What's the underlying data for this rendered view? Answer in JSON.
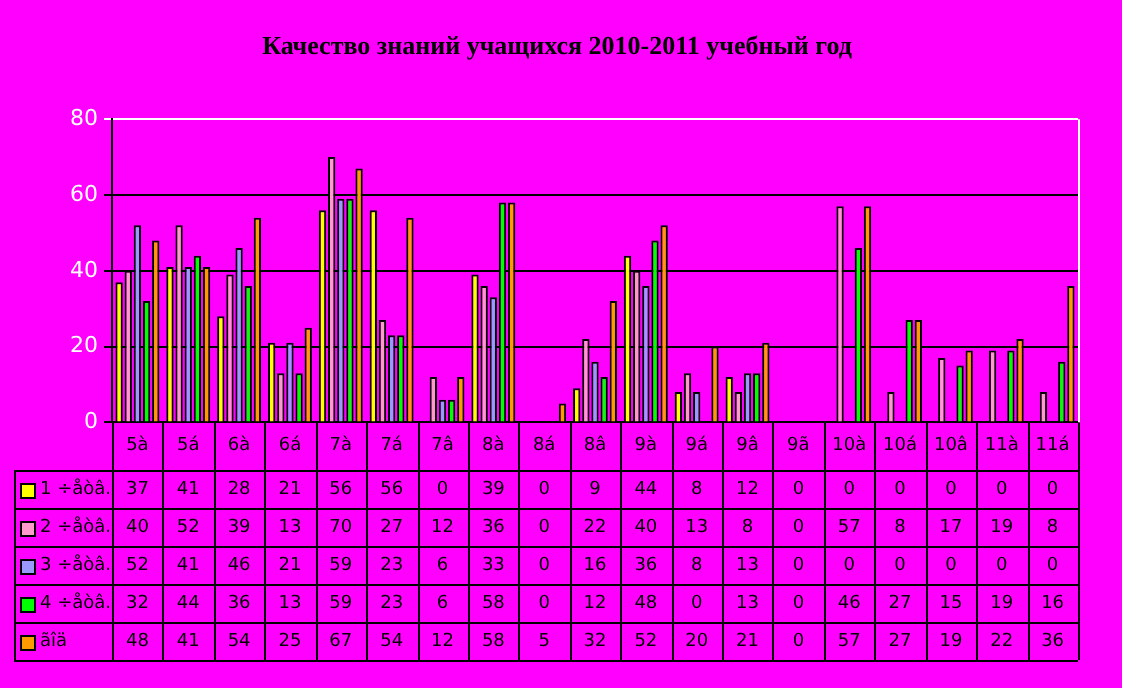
{
  "chart_data": {
    "type": "bar",
    "title": "Качество знаний учащихся 2010-2011 учебный год",
    "categories": [
      "5à",
      "5á",
      "6à",
      "6á",
      "7à",
      "7á",
      "7â",
      "8à",
      "8á",
      "8â",
      "9à",
      "9á",
      "9â",
      "9ã",
      "10à",
      "10á",
      "10â",
      "11à",
      "11á"
    ],
    "series": [
      {
        "name": "1 ÷åòâ.",
        "color": "#ffff00",
        "values": [
          37,
          41,
          28,
          21,
          56,
          56,
          0,
          39,
          0,
          9,
          44,
          8,
          12,
          0,
          0,
          0,
          0,
          0,
          0
        ]
      },
      {
        "name": "2 ÷åòâ.",
        "color": "#ff99cc",
        "values": [
          40,
          52,
          39,
          13,
          70,
          27,
          12,
          36,
          0,
          22,
          40,
          13,
          8,
          0,
          57,
          8,
          17,
          19,
          8
        ]
      },
      {
        "name": "3 ÷åòâ.",
        "color": "#9999ff",
        "values": [
          52,
          41,
          46,
          21,
          59,
          23,
          6,
          33,
          0,
          16,
          36,
          8,
          13,
          0,
          0,
          0,
          0,
          0,
          0
        ]
      },
      {
        "name": "4 ÷åòâ.",
        "color": "#00ff00",
        "values": [
          32,
          44,
          36,
          13,
          59,
          23,
          6,
          58,
          0,
          12,
          48,
          0,
          13,
          0,
          46,
          27,
          15,
          19,
          16
        ]
      },
      {
        "name": "ãîä",
        "color": "#ff9900",
        "values": [
          48,
          41,
          54,
          25,
          67,
          54,
          12,
          58,
          5,
          32,
          52,
          20,
          21,
          0,
          57,
          27,
          19,
          22,
          36
        ]
      }
    ],
    "ylim": [
      0,
      80
    ],
    "yticks": [
      0,
      20,
      40,
      60,
      80
    ],
    "grid": "y",
    "legend": "bottom",
    "data_labels": true
  }
}
